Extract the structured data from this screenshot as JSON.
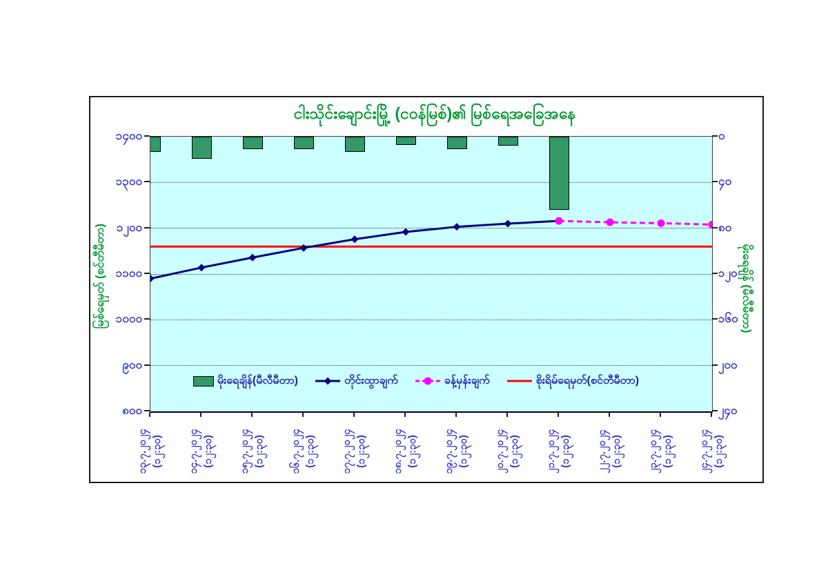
{
  "title": "ငါးသိုင်းချောင်းမြို့ (ငဝန်မြစ်)၏ မြစ်ရေအခြေအနေ",
  "colors": {
    "title_green": "#009933",
    "tick_blue": "#3333CC",
    "legend_text_blue": "#1F1FA8",
    "plot_bg": "#CCFFFF",
    "bar_green": "#339966",
    "observed_blue": "#000080",
    "forecast_magenta": "#FF00FF",
    "danger_red": "#FF0000",
    "frame_border": "#1A1A1A"
  },
  "left_axis": {
    "title": "မြစ်ရေမှတ် (စင်တီမီတာ)",
    "min": 800,
    "max": 1400,
    "ticks": [
      {
        "label": "၁၄၀၀",
        "value": 1400
      },
      {
        "label": "၁၃၀၀",
        "value": 1300
      },
      {
        "label": "၁၂၀၀",
        "value": 1200
      },
      {
        "label": "၁၁၀၀",
        "value": 1100
      },
      {
        "label": "၁၀၀၀",
        "value": 1000
      },
      {
        "label": "၉၀၀",
        "value": 900
      },
      {
        "label": "၈၀၀",
        "value": 800
      }
    ]
  },
  "right_axis": {
    "title": "မိုးရေချိန် (မီလီမီတာ)",
    "min": 0,
    "max": 240,
    "inverted": true,
    "ticks": [
      {
        "label": "၀",
        "value": 0
      },
      {
        "label": "၄၀",
        "value": 40
      },
      {
        "label": "၈၀",
        "value": 80
      },
      {
        "label": "၁၂၀",
        "value": 120
      },
      {
        "label": "၁၆၀",
        "value": 160
      },
      {
        "label": "၂၀၀",
        "value": 200
      },
      {
        "label": "၂၄၀",
        "value": 240
      }
    ]
  },
  "x_axis": {
    "time_label": "(၁၂:၃၀)",
    "dates": [
      "၁၃.၇.၂၀၂၄",
      "၁၄.၇.၂၀၂၄",
      "၁၅.၇.၂၀၂၄",
      "၁၆.၇.၂၀၂၄",
      "၁၇.၇.၂၀၂၄",
      "၁၈.၇.၂၀၂၄",
      "၁၉.၇.၂၀၂၄",
      "၂၀.၇.၂၀၂၄",
      "၂၁.၇.၂၀၂၄",
      "၂၂.၇.၂၀၂၄",
      "၂၃.၇.၂၀၂၄",
      "၂၄.၇.၂၀၂၄"
    ]
  },
  "legend": {
    "items": [
      {
        "label": "မိုးရေချိန်(မီလီမီတာ)",
        "swatch": "bar"
      },
      {
        "label": "တိုင်းထွာချက်",
        "swatch": "line-diamond"
      },
      {
        "label": "ခန့်မှန်းချက်",
        "swatch": "dashed-circle"
      },
      {
        "label": "စိုးရိမ်ရေမှတ်(စင်တီမီတာ)",
        "swatch": "line"
      }
    ]
  },
  "chart_data": {
    "type": "combo",
    "categories": [
      "13.7.2024 (12:30)",
      "14.7.2024 (12:30)",
      "15.7.2024 (12:30)",
      "16.7.2024 (12:30)",
      "17.7.2024 (12:30)",
      "18.7.2024 (12:30)",
      "19.7.2024 (12:30)",
      "20.7.2024 (12:30)",
      "21.7.2024 (12:30)",
      "22.7.2024 (12:30)",
      "23.7.2024 (12:30)",
      "24.7.2024 (12:30)"
    ],
    "left_ylim": [
      800,
      1400
    ],
    "right_ylim": [
      240,
      0
    ],
    "grid": "horizontal-dotted",
    "legend_position": "bottom-inside",
    "series": [
      {
        "name": "မိုးရေချိန်(မီလီမီတာ)",
        "type": "bar",
        "axis": "right",
        "color": "#339966",
        "values": [
          13,
          19,
          11,
          11,
          13,
          7,
          11,
          8,
          64,
          null,
          null,
          null
        ]
      },
      {
        "name": "တိုင်းထွာချက်",
        "type": "line",
        "axis": "left",
        "color": "#000080",
        "marker": "diamond",
        "values": [
          1090,
          1114,
          1136,
          1157,
          1176,
          1192,
          1203,
          1210,
          1216,
          null,
          null,
          null
        ]
      },
      {
        "name": "ခန့်မှန်းချက်",
        "type": "line",
        "style": "dashed",
        "axis": "left",
        "color": "#FF00FF",
        "marker": "circle",
        "values": [
          null,
          null,
          null,
          null,
          null,
          null,
          null,
          null,
          1216,
          1213,
          1211,
          1208
        ]
      },
      {
        "name": "စိုးရိမ်ရေမှတ်(စင်တီမီတာ)",
        "type": "hline",
        "axis": "left",
        "color": "#FF0000",
        "value": 1160
      }
    ]
  }
}
